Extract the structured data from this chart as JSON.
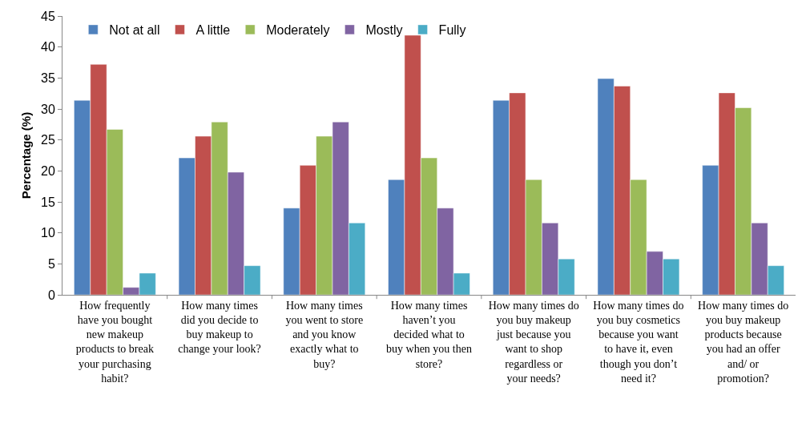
{
  "chart_data": {
    "type": "bar",
    "ylabel": "Percentage (%)",
    "categories": [
      "How frequently have you bought new makeup products to break your purchasing habit?",
      "How many times did you decide to buy makeup to change your look?",
      "How many times you went to store and you know exactly what to buy?",
      "How many times haven’t you decided what to buy when you then store?",
      "How many times do you buy makeup just because you want to shop regardless or your needs?",
      "How many times do you buy cosmetics because you want to have it, even though you don’t need it?",
      "How many times do you buy makeup products because you had an offer and/ or promotion?"
    ],
    "series": [
      {
        "name": "Not at all",
        "color": "#4f81bd",
        "values": [
          31.4,
          22.1,
          14.0,
          18.6,
          31.4,
          34.9,
          20.9
        ]
      },
      {
        "name": "A little",
        "color": "#c0504d",
        "values": [
          37.2,
          25.6,
          20.9,
          41.9,
          32.6,
          33.7,
          32.6
        ]
      },
      {
        "name": "Moderately",
        "color": "#9bbb59",
        "values": [
          26.7,
          27.9,
          25.6,
          22.1,
          18.6,
          18.6,
          30.2
        ]
      },
      {
        "name": "Mostly",
        "color": "#8064a2",
        "values": [
          1.2,
          19.8,
          27.9,
          14.0,
          11.6,
          7.0,
          11.6
        ]
      },
      {
        "name": "Fully",
        "color": "#4bacc6",
        "values": [
          3.5,
          4.7,
          11.6,
          3.5,
          5.8,
          5.8,
          4.7
        ]
      }
    ],
    "ylim": [
      0,
      45
    ],
    "yticks": [
      0,
      5,
      10,
      15,
      20,
      25,
      30,
      35,
      40,
      45
    ],
    "grid": false,
    "legend": "top"
  }
}
